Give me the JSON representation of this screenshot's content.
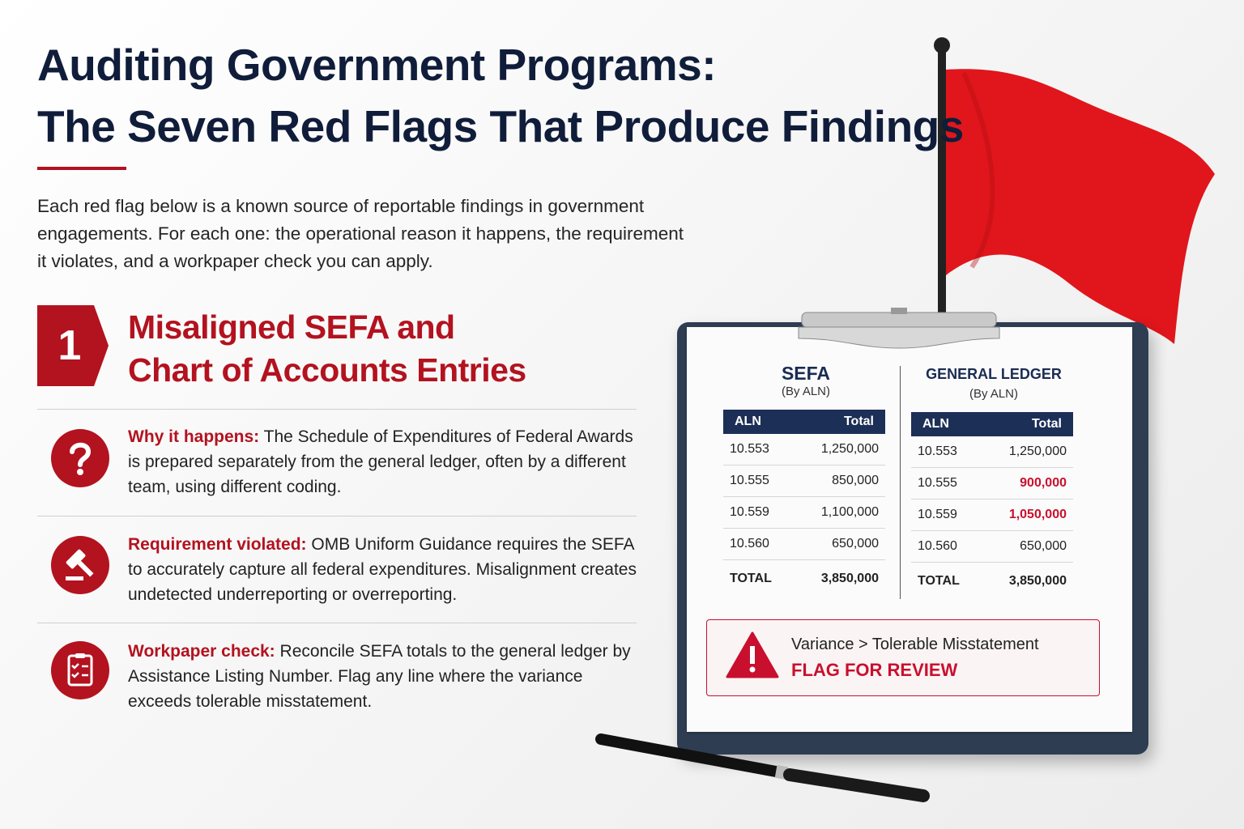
{
  "header": {
    "title_lines": [
      "Auditing Government Programs:",
      "The Seven Red Flags That Produce Findings"
    ],
    "intro_lines": [
      "Each red flag below is a known source of reportable findings in government",
      "engagements. For each one: the operational reason it happens, the requirement",
      "it violates, and a workpaper check you can apply."
    ]
  },
  "section": {
    "number": "1",
    "title_lines": [
      "Misaligned SEFA and",
      "Chart of Accounts Entries"
    ],
    "items": [
      {
        "label": "Why it happens:",
        "text": "The Schedule of Expenditures of Federal Awards is prepared separately from the general ledger, often by a different team, using different coding."
      },
      {
        "label": "Requirement violated:",
        "text": "OMB Uniform Guidance requires the SEFA to accurately capture all federal expenditures. Misalignment creates undetected underreporting or overreporting."
      },
      {
        "label": "Workpaper check:",
        "text": "Reconcile SEFA totals to the general ledger by Assistance Listing Number. Flag any line where the variance exceeds tolerable misstatement."
      }
    ]
  },
  "clipboard": {
    "sefa": {
      "title": "SEFA",
      "subtitle": "(By ALN)",
      "header": [
        "ALN",
        "Total"
      ],
      "rows": [
        [
          "10.553",
          "1,250,000"
        ],
        [
          "10.555",
          "850,000"
        ],
        [
          "10.559",
          "1,100,000"
        ],
        [
          "10.560",
          "650,000"
        ]
      ],
      "total": [
        "TOTAL",
        "3,850,000"
      ]
    },
    "general_ledger": {
      "title": "GENERAL LEDGER",
      "subtitle": "(By ALN)",
      "header": [
        "ALN",
        "Total"
      ],
      "rows": [
        [
          "10.553",
          "1,250,000"
        ],
        [
          "10.555",
          "900,000"
        ],
        [
          "10.559",
          "1,050,000"
        ],
        [
          "10.560",
          "650,000"
        ]
      ],
      "total": [
        "TOTAL",
        "3,850,000"
      ]
    },
    "alert": {
      "message": "Variance > Tolerable Misstatement",
      "action": "FLAG FOR REVIEW"
    }
  }
}
